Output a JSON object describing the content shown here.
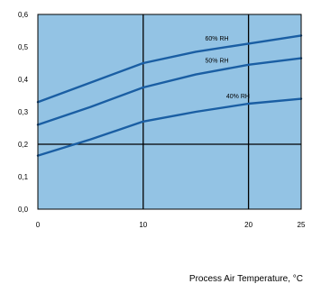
{
  "chart_data": {
    "type": "line",
    "xlabel": "Process Air Temperature, °C",
    "ylabel": "",
    "x_ticks": [
      "0",
      "10",
      "20",
      "25"
    ],
    "y_ticks": [
      "0,0",
      "0,1",
      "0,2",
      "0,3",
      "0,4",
      "0,5",
      "0,6"
    ],
    "xlim": [
      0,
      25
    ],
    "ylim": [
      0,
      0.6
    ],
    "major_grid_x": [
      10,
      20
    ],
    "major_grid_y": [
      0.2
    ],
    "colors": {
      "plot_bg": "#93c3e4",
      "line": "#1a5ea3",
      "grid": "#000000",
      "frame": "#000000"
    },
    "series": [
      {
        "name": "60% RH",
        "x": [
          0,
          5,
          10,
          15,
          20,
          25
        ],
        "y": [
          0.33,
          0.39,
          0.45,
          0.485,
          0.51,
          0.535
        ]
      },
      {
        "name": "50% RH",
        "x": [
          0,
          5,
          10,
          15,
          20,
          25
        ],
        "y": [
          0.26,
          0.315,
          0.375,
          0.415,
          0.445,
          0.465
        ]
      },
      {
        "name": "40% RH",
        "x": [
          0,
          5,
          10,
          15,
          20,
          25
        ],
        "y": [
          0.165,
          0.215,
          0.27,
          0.3,
          0.325,
          0.34
        ]
      }
    ]
  }
}
